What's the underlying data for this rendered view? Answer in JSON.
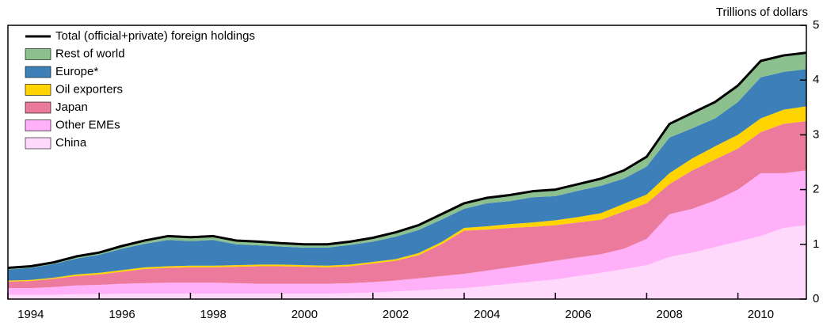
{
  "chart_data": {
    "type": "area",
    "y_axis_label": "Trillions of dollars",
    "x": [
      1994.0,
      1994.5,
      1995.0,
      1995.5,
      1996.0,
      1996.5,
      1997.0,
      1997.5,
      1998.0,
      1998.5,
      1999.0,
      1999.5,
      2000.0,
      2000.5,
      2001.0,
      2001.5,
      2002.0,
      2002.5,
      2003.0,
      2003.5,
      2004.0,
      2004.5,
      2005.0,
      2005.5,
      2006.0,
      2006.5,
      2007.0,
      2007.5,
      2008.0,
      2008.5,
      2009.0,
      2009.5,
      2010.0,
      2010.5,
      2011.0,
      2011.5
    ],
    "xlim": [
      1994,
      2011.5
    ],
    "xticks": [
      1994,
      1996,
      1998,
      2000,
      2002,
      2004,
      2006,
      2008,
      2010
    ],
    "ylim": [
      0,
      5
    ],
    "yticks": [
      0,
      1,
      2,
      3,
      4,
      5
    ],
    "stacked": true,
    "legend": "top-left",
    "series": [
      {
        "name": "China",
        "color": "#ffd9fb",
        "values": [
          0.08,
          0.08,
          0.08,
          0.09,
          0.09,
          0.1,
          0.1,
          0.1,
          0.1,
          0.1,
          0.1,
          0.1,
          0.1,
          0.1,
          0.1,
          0.11,
          0.12,
          0.14,
          0.16,
          0.18,
          0.2,
          0.24,
          0.28,
          0.32,
          0.36,
          0.42,
          0.48,
          0.55,
          0.62,
          0.77,
          0.85,
          0.95,
          1.05,
          1.15,
          1.3,
          1.35
        ]
      },
      {
        "name": "Other EMEs",
        "color": "#ffb0f8",
        "values": [
          0.12,
          0.12,
          0.14,
          0.16,
          0.17,
          0.18,
          0.19,
          0.2,
          0.2,
          0.2,
          0.19,
          0.18,
          0.18,
          0.18,
          0.18,
          0.18,
          0.19,
          0.2,
          0.22,
          0.24,
          0.26,
          0.28,
          0.3,
          0.32,
          0.34,
          0.34,
          0.34,
          0.37,
          0.48,
          0.78,
          0.8,
          0.85,
          0.95,
          1.15,
          1.0,
          1.0
        ]
      },
      {
        "name": "Japan",
        "color": "#ec7a9c",
        "values": [
          0.12,
          0.13,
          0.15,
          0.17,
          0.19,
          0.22,
          0.26,
          0.27,
          0.28,
          0.28,
          0.3,
          0.32,
          0.32,
          0.31,
          0.3,
          0.31,
          0.34,
          0.36,
          0.42,
          0.58,
          0.79,
          0.75,
          0.72,
          0.68,
          0.65,
          0.64,
          0.63,
          0.68,
          0.65,
          0.55,
          0.7,
          0.75,
          0.75,
          0.75,
          0.9,
          0.9
        ]
      },
      {
        "name": "Oil exporters",
        "color": "#ffd400",
        "values": [
          0.02,
          0.02,
          0.02,
          0.03,
          0.03,
          0.03,
          0.03,
          0.03,
          0.03,
          0.03,
          0.03,
          0.03,
          0.03,
          0.03,
          0.03,
          0.03,
          0.03,
          0.03,
          0.04,
          0.04,
          0.05,
          0.06,
          0.07,
          0.08,
          0.09,
          0.1,
          0.12,
          0.14,
          0.16,
          0.2,
          0.22,
          0.24,
          0.25,
          0.25,
          0.26,
          0.27
        ]
      },
      {
        "name": "Europe*",
        "color": "#3d7fb8",
        "values": [
          0.2,
          0.22,
          0.25,
          0.29,
          0.33,
          0.39,
          0.43,
          0.48,
          0.45,
          0.47,
          0.38,
          0.35,
          0.33,
          0.32,
          0.33,
          0.36,
          0.37,
          0.41,
          0.42,
          0.41,
          0.35,
          0.42,
          0.42,
          0.46,
          0.44,
          0.48,
          0.5,
          0.46,
          0.51,
          0.65,
          0.55,
          0.51,
          0.6,
          0.75,
          0.69,
          0.68
        ]
      },
      {
        "name": "Rest of world",
        "color": "#8cc08e",
        "values": [
          0.03,
          0.03,
          0.03,
          0.04,
          0.04,
          0.05,
          0.06,
          0.07,
          0.07,
          0.07,
          0.07,
          0.07,
          0.06,
          0.06,
          0.06,
          0.06,
          0.07,
          0.08,
          0.09,
          0.1,
          0.1,
          0.1,
          0.11,
          0.11,
          0.12,
          0.12,
          0.13,
          0.15,
          0.18,
          0.25,
          0.28,
          0.3,
          0.3,
          0.3,
          0.3,
          0.3
        ]
      },
      {
        "name": "Total (official+private) foreign holdings",
        "color": "#000000",
        "kind": "line",
        "values": [
          0.57,
          0.6,
          0.67,
          0.78,
          0.85,
          0.97,
          1.07,
          1.15,
          1.13,
          1.15,
          1.07,
          1.05,
          1.02,
          1.0,
          1.0,
          1.05,
          1.12,
          1.22,
          1.35,
          1.55,
          1.75,
          1.85,
          1.9,
          1.97,
          2.0,
          2.1,
          2.2,
          2.35,
          2.6,
          3.2,
          3.4,
          3.6,
          3.9,
          4.35,
          4.45,
          4.5
        ]
      }
    ]
  }
}
